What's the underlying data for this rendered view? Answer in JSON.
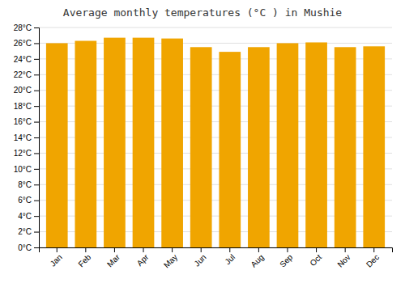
{
  "chart_data": {
    "type": "bar",
    "title": "Average monthly temperatures (°C ) in Mushie",
    "categories": [
      "Jan",
      "Feb",
      "Mar",
      "Apr",
      "May",
      "Jun",
      "Jul",
      "Aug",
      "Sep",
      "Oct",
      "Nov",
      "Dec"
    ],
    "values": [
      26.0,
      26.3,
      26.7,
      26.7,
      26.6,
      25.5,
      24.9,
      25.5,
      26.0,
      26.1,
      25.5,
      25.6
    ],
    "color": "#F0A500",
    "ylim": [
      0,
      28
    ],
    "yticks": [
      {
        "value": 0,
        "label": "0°C"
      },
      {
        "value": 2,
        "label": "2°C"
      },
      {
        "value": 4,
        "label": "4°C"
      },
      {
        "value": 6,
        "label": "6°C"
      },
      {
        "value": 8,
        "label": "8°C"
      },
      {
        "value": 10,
        "label": "10°C"
      },
      {
        "value": 12,
        "label": "12°C"
      },
      {
        "value": 14,
        "label": "14°C"
      },
      {
        "value": 16,
        "label": "16°C"
      },
      {
        "value": 18,
        "label": "18°C"
      },
      {
        "value": 20,
        "label": "20°C"
      },
      {
        "value": 22,
        "label": "22°C"
      },
      {
        "value": 24,
        "label": "24°C"
      },
      {
        "value": 26,
        "label": "26°C"
      },
      {
        "value": 28,
        "label": "28°C"
      }
    ],
    "grid": true
  }
}
